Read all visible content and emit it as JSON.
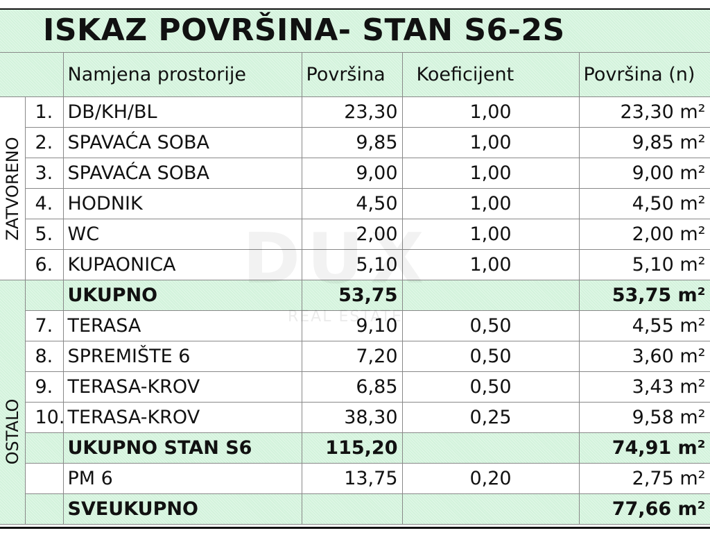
{
  "title": "ISKAZ POVRŠINA- STAN S6-2S",
  "headers": {
    "name": "Namjena prostorije",
    "area": "Površina",
    "coef": "Koeficijent",
    "net": "Površina (n)"
  },
  "groups": {
    "closed": "ZATVORENO",
    "other": "OSTALO"
  },
  "rows": [
    {
      "no": "1.",
      "name": "DB/KH/BL",
      "area": "23,30",
      "coef": "1,00",
      "net": "23,30 m²"
    },
    {
      "no": "2.",
      "name": "SPAVAĆA SOBA",
      "area": "9,85",
      "coef": "1,00",
      "net": "9,85 m²"
    },
    {
      "no": "3.",
      "name": "SPAVAĆA SOBA",
      "area": "9,00",
      "coef": "1,00",
      "net": "9,00 m²"
    },
    {
      "no": "4.",
      "name": "HODNIK",
      "area": "4,50",
      "coef": "1,00",
      "net": "4,50 m²"
    },
    {
      "no": "5.",
      "name": "WC",
      "area": "2,00",
      "coef": "1,00",
      "net": "2,00 m²"
    },
    {
      "no": "6.",
      "name": "KUPAONICA",
      "area": "5,10",
      "coef": "1,00",
      "net": "5,10 m²"
    },
    {
      "no": "",
      "name": "UKUPNO",
      "area": "53,75",
      "coef": "",
      "net": "53,75 m²"
    },
    {
      "no": "7.",
      "name": "TERASA",
      "area": "9,10",
      "coef": "0,50",
      "net": "4,55 m²"
    },
    {
      "no": "8.",
      "name": "SPREMIŠTE 6",
      "area": "7,20",
      "coef": "0,50",
      "net": "3,60 m²"
    },
    {
      "no": "9.",
      "name": "TERASA-KROV",
      "area": "6,85",
      "coef": "0,50",
      "net": "3,43 m²"
    },
    {
      "no": "10.",
      "name": "TERASA-KROV",
      "area": "38,30",
      "coef": "0,25",
      "net": "9,58 m²"
    },
    {
      "no": "",
      "name": "UKUPNO STAN S6",
      "area": "115,20",
      "coef": "",
      "net": "74,91 m²"
    },
    {
      "no": "",
      "name": "PM 6",
      "area": "13,75",
      "coef": "0,20",
      "net": "2,75 m²"
    },
    {
      "no": "",
      "name": "SVEUKUPNO",
      "area": "",
      "coef": "",
      "net": "77,66 m²"
    }
  ],
  "watermark": {
    "logo": "DUX",
    "sub": "REAL ESTATE"
  },
  "colors": {
    "header_green": "#d3f3dc",
    "border": "#888888"
  }
}
